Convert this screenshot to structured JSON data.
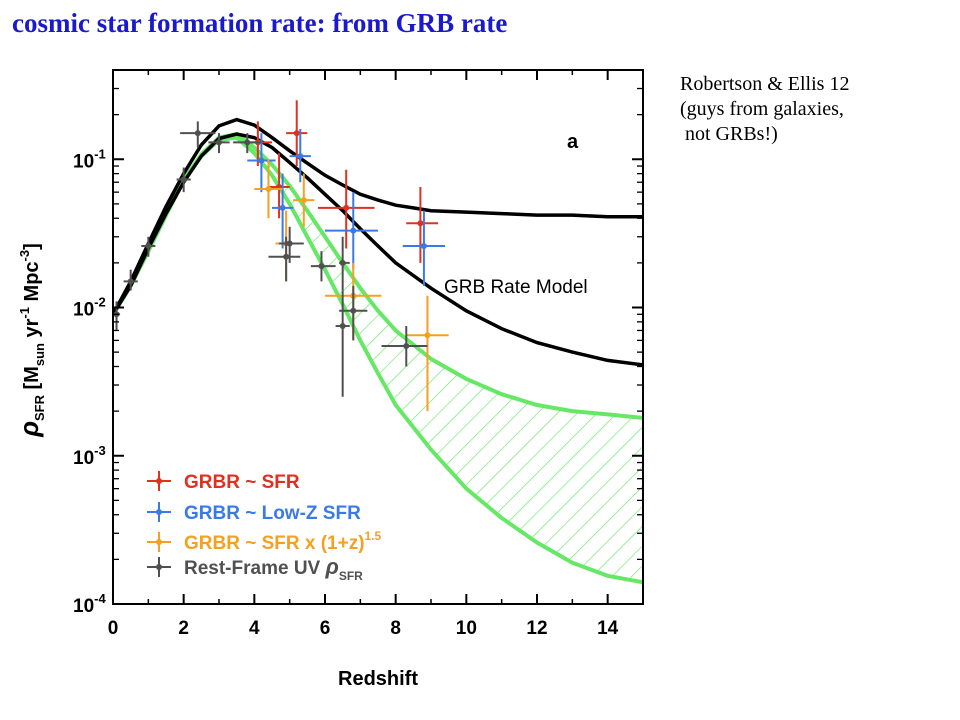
{
  "slide": {
    "title": "cosmic star formation rate: from GRB rate",
    "citation_lines": [
      "Robertson & Ellis 12",
      "(guys from galaxies,",
      " not GRBs!)"
    ]
  },
  "colors": {
    "title": "#1a1acc",
    "red": "#e03020",
    "blue": "#3a7ae8",
    "orange": "#f5a020",
    "gray": "#505050",
    "green_band": "#66e866",
    "model": "#000000"
  },
  "chart_data": {
    "type": "scatter",
    "panel_label": "a",
    "xlabel": "Redshift",
    "ylabel_parts": {
      "rho": "ρ",
      "rho_sub": "SFR",
      "open": " [M",
      "m_sub": "sun",
      "yr": " yr",
      "yr_sup": "-1",
      "mpc": " Mpc",
      "mpc_sup": "-3",
      "close": "]"
    },
    "xlim": [
      0,
      15
    ],
    "ylim": [
      0.0001,
      0.4
    ],
    "yscale": "log",
    "x_ticks": [
      0,
      2,
      4,
      6,
      8,
      10,
      12,
      14
    ],
    "y_ticks": [
      {
        "value": 0.1,
        "base": "10",
        "exp": "-1"
      },
      {
        "value": 0.01,
        "base": "10",
        "exp": "-2"
      },
      {
        "value": 0.001,
        "base": "10",
        "exp": "-3"
      },
      {
        "value": 0.0001,
        "base": "10",
        "exp": "-4"
      }
    ],
    "annotation": "GRB Rate Model",
    "legend": {
      "position": "lower-left",
      "entries": [
        {
          "text": "GRBR ~ SFR",
          "color_key": "red"
        },
        {
          "text": "GRBR ~ Low-Z SFR",
          "color_key": "blue"
        },
        {
          "text": "GRBR ~ SFR x (1+z)",
          "sup": "1.5",
          "color_key": "orange"
        },
        {
          "text": "Rest-Frame UV ",
          "rho": "ρ",
          "sub": "SFR",
          "color_key": "gray"
        }
      ]
    },
    "curves": {
      "model_upper": [
        [
          0,
          0.009
        ],
        [
          0.5,
          0.015
        ],
        [
          1,
          0.027
        ],
        [
          1.5,
          0.048
        ],
        [
          2,
          0.08
        ],
        [
          2.5,
          0.125
        ],
        [
          3,
          0.168
        ],
        [
          3.5,
          0.185
        ],
        [
          4,
          0.17
        ],
        [
          4.5,
          0.14
        ],
        [
          5,
          0.114
        ],
        [
          5.5,
          0.094
        ],
        [
          6,
          0.078
        ],
        [
          6.5,
          0.067
        ],
        [
          7,
          0.058
        ],
        [
          7.5,
          0.053
        ],
        [
          8,
          0.049
        ],
        [
          8.5,
          0.047
        ],
        [
          9,
          0.045
        ],
        [
          10,
          0.044
        ],
        [
          11,
          0.043
        ],
        [
          12,
          0.042
        ],
        [
          13,
          0.042
        ],
        [
          14,
          0.041
        ],
        [
          15,
          0.041
        ]
      ],
      "model_lower": [
        [
          0,
          0.009
        ],
        [
          0.5,
          0.014
        ],
        [
          1,
          0.025
        ],
        [
          1.5,
          0.043
        ],
        [
          2,
          0.07
        ],
        [
          2.5,
          0.105
        ],
        [
          3,
          0.138
        ],
        [
          3.5,
          0.148
        ],
        [
          4,
          0.14
        ],
        [
          4.5,
          0.12
        ],
        [
          5,
          0.095
        ],
        [
          5.5,
          0.075
        ],
        [
          6,
          0.058
        ],
        [
          6.5,
          0.045
        ],
        [
          7,
          0.034
        ],
        [
          7.5,
          0.026
        ],
        [
          8,
          0.02
        ],
        [
          9,
          0.0135
        ],
        [
          10,
          0.0095
        ],
        [
          11,
          0.0072
        ],
        [
          12,
          0.0058
        ],
        [
          13,
          0.005
        ],
        [
          14,
          0.0044
        ],
        [
          15,
          0.0041
        ]
      ],
      "band_upper": [
        [
          0,
          0.009
        ],
        [
          0.5,
          0.014
        ],
        [
          1,
          0.024
        ],
        [
          1.5,
          0.042
        ],
        [
          2,
          0.072
        ],
        [
          2.5,
          0.108
        ],
        [
          3,
          0.14
        ],
        [
          3.5,
          0.148
        ],
        [
          4,
          0.12
        ],
        [
          4.5,
          0.092
        ],
        [
          5,
          0.066
        ],
        [
          5.5,
          0.045
        ],
        [
          6,
          0.03
        ],
        [
          6.5,
          0.02
        ],
        [
          7,
          0.0135
        ],
        [
          7.5,
          0.0095
        ],
        [
          8,
          0.007
        ],
        [
          9,
          0.0045
        ],
        [
          10,
          0.0033
        ],
        [
          11,
          0.0026
        ],
        [
          12,
          0.0022
        ],
        [
          13,
          0.002
        ],
        [
          14,
          0.0019
        ],
        [
          15,
          0.0018
        ]
      ],
      "band_lower": [
        [
          0,
          0.009
        ],
        [
          0.5,
          0.014
        ],
        [
          1,
          0.024
        ],
        [
          1.5,
          0.042
        ],
        [
          2,
          0.072
        ],
        [
          2.5,
          0.105
        ],
        [
          3,
          0.135
        ],
        [
          3.5,
          0.14
        ],
        [
          4,
          0.11
        ],
        [
          4.5,
          0.078
        ],
        [
          5,
          0.05
        ],
        [
          5.5,
          0.03
        ],
        [
          6,
          0.018
        ],
        [
          6.5,
          0.0105
        ],
        [
          7,
          0.006
        ],
        [
          7.5,
          0.0036
        ],
        [
          8,
          0.0022
        ],
        [
          9,
          0.0011
        ],
        [
          10,
          0.0006
        ],
        [
          11,
          0.00038
        ],
        [
          12,
          0.00026
        ],
        [
          13,
          0.00019
        ],
        [
          14,
          0.000155
        ],
        [
          15,
          0.00014
        ]
      ]
    },
    "series": [
      {
        "name": "GRBR ~ SFR",
        "color_key": "red",
        "points": [
          {
            "x": 4.1,
            "y": 0.13,
            "xlo": 3.7,
            "xhi": 4.5,
            "ylo": 0.09,
            "yhi": 0.18
          },
          {
            "x": 4.7,
            "y": 0.065,
            "xlo": 4.4,
            "xhi": 5.0,
            "ylo": 0.04,
            "yhi": 0.11
          },
          {
            "x": 5.2,
            "y": 0.15,
            "xlo": 4.9,
            "xhi": 5.5,
            "ylo": 0.09,
            "yhi": 0.25
          },
          {
            "x": 6.6,
            "y": 0.047,
            "xlo": 5.8,
            "xhi": 7.4,
            "ylo": 0.025,
            "yhi": 0.085
          },
          {
            "x": 8.7,
            "y": 0.037,
            "xlo": 8.3,
            "xhi": 9.2,
            "ylo": 0.02,
            "yhi": 0.065
          }
        ]
      },
      {
        "name": "GRBR ~ Low-Z SFR",
        "color_key": "blue",
        "points": [
          {
            "x": 4.2,
            "y": 0.098,
            "xlo": 3.8,
            "xhi": 4.6,
            "ylo": 0.06,
            "yhi": 0.15
          },
          {
            "x": 4.8,
            "y": 0.047,
            "xlo": 4.5,
            "xhi": 5.1,
            "ylo": 0.025,
            "yhi": 0.08
          },
          {
            "x": 5.3,
            "y": 0.105,
            "xlo": 5.0,
            "xhi": 5.6,
            "ylo": 0.07,
            "yhi": 0.16
          },
          {
            "x": 6.8,
            "y": 0.033,
            "xlo": 6.0,
            "xhi": 7.5,
            "ylo": 0.018,
            "yhi": 0.06
          },
          {
            "x": 8.8,
            "y": 0.026,
            "xlo": 8.2,
            "xhi": 9.4,
            "ylo": 0.014,
            "yhi": 0.045
          }
        ]
      },
      {
        "name": "GRBR ~ SFR x (1+z)^1.5",
        "color_key": "orange",
        "points": [
          {
            "x": 4.4,
            "y": 0.063,
            "xlo": 4.0,
            "xhi": 4.8,
            "ylo": 0.04,
            "yhi": 0.1
          },
          {
            "x": 4.9,
            "y": 0.027,
            "xlo": 4.6,
            "xhi": 5.2,
            "ylo": 0.015,
            "yhi": 0.045
          },
          {
            "x": 5.4,
            "y": 0.053,
            "xlo": 5.1,
            "xhi": 5.7,
            "ylo": 0.035,
            "yhi": 0.08
          },
          {
            "x": 6.8,
            "y": 0.012,
            "xlo": 6.0,
            "xhi": 7.6,
            "ylo": 0.006,
            "yhi": 0.02
          },
          {
            "x": 8.9,
            "y": 0.0065,
            "xlo": 8.3,
            "xhi": 9.5,
            "ylo": 0.002,
            "yhi": 0.012
          }
        ]
      },
      {
        "name": "Rest-Frame UV ρSFR",
        "color_key": "gray",
        "points": [
          {
            "x": 0.1,
            "y": 0.009,
            "xlo": 0.0,
            "xhi": 0.2,
            "ylo": 0.007,
            "yhi": 0.011
          },
          {
            "x": 0.5,
            "y": 0.015,
            "xlo": 0.3,
            "xhi": 0.7,
            "ylo": 0.013,
            "yhi": 0.018
          },
          {
            "x": 1.0,
            "y": 0.026,
            "xlo": 0.8,
            "xhi": 1.2,
            "ylo": 0.022,
            "yhi": 0.03
          },
          {
            "x": 2.0,
            "y": 0.073,
            "xlo": 1.8,
            "xhi": 2.2,
            "ylo": 0.06,
            "yhi": 0.088
          },
          {
            "x": 2.4,
            "y": 0.15,
            "xlo": 1.9,
            "xhi": 2.9,
            "ylo": 0.12,
            "yhi": 0.18
          },
          {
            "x": 3.0,
            "y": 0.13,
            "xlo": 2.7,
            "xhi": 3.3,
            "ylo": 0.11,
            "yhi": 0.15
          },
          {
            "x": 3.8,
            "y": 0.13,
            "xlo": 3.4,
            "xhi": 4.2,
            "ylo": 0.11,
            "yhi": 0.15
          },
          {
            "x": 4.9,
            "y": 0.022,
            "xlo": 4.4,
            "xhi": 5.3,
            "ylo": 0.015,
            "yhi": 0.03
          },
          {
            "x": 5.0,
            "y": 0.027,
            "xlo": 4.7,
            "xhi": 5.4,
            "ylo": 0.02,
            "yhi": 0.035
          },
          {
            "x": 5.9,
            "y": 0.019,
            "xlo": 5.6,
            "xhi": 6.3,
            "ylo": 0.015,
            "yhi": 0.024
          },
          {
            "x": 6.5,
            "y": 0.02,
            "xlo": 6.4,
            "xhi": 6.7,
            "ylo": 0.013,
            "yhi": 0.03
          },
          {
            "x": 6.5,
            "y": 0.0075,
            "xlo": 6.3,
            "xhi": 6.7,
            "ylo": 0.0025,
            "yhi": 0.013
          },
          {
            "x": 6.8,
            "y": 0.0095,
            "xlo": 6.4,
            "xhi": 7.2,
            "ylo": 0.006,
            "yhi": 0.014
          },
          {
            "x": 8.3,
            "y": 0.0055,
            "xlo": 7.6,
            "xhi": 8.9,
            "ylo": 0.004,
            "yhi": 0.0075
          }
        ]
      }
    ]
  }
}
